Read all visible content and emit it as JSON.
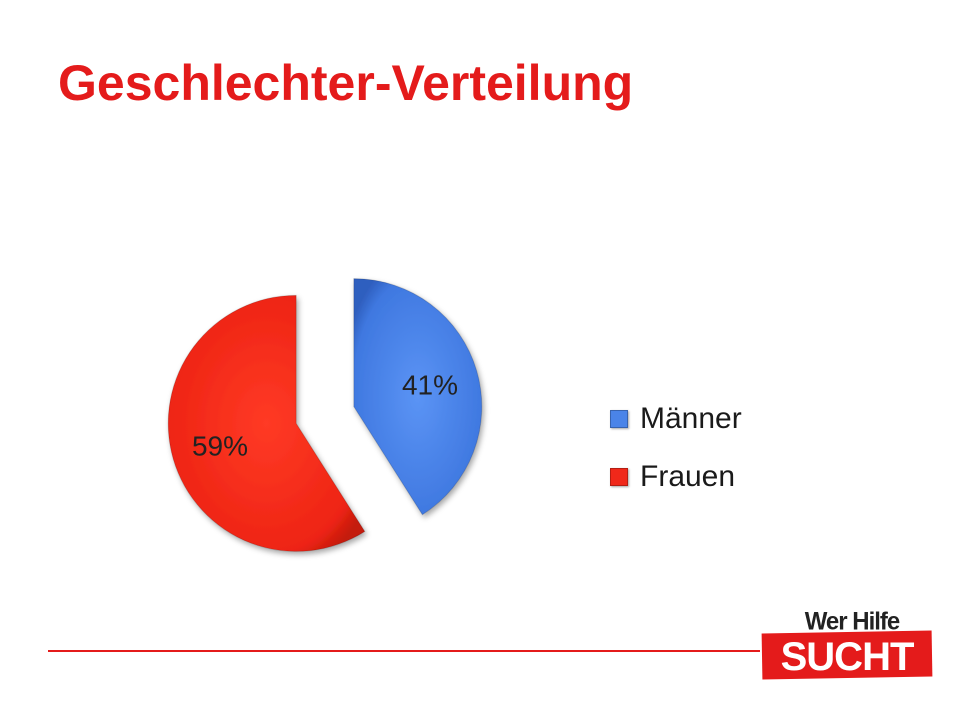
{
  "slide": {
    "title": "Geschlechter-Verteilung"
  },
  "chart_data": {
    "type": "pie",
    "exploded": true,
    "slices": [
      {
        "label": "Männer",
        "value": 41,
        "data_label": "41%",
        "color": "#4a84e8"
      },
      {
        "label": "Frauen",
        "value": 59,
        "data_label": "59%",
        "color": "#f0281a"
      }
    ],
    "legend_position": "right"
  },
  "logo": {
    "line1": "Wer Hilfe",
    "line2": "SUCHT",
    "color": "#e41b1b"
  },
  "colors": {
    "accent": "#e41b1b"
  }
}
